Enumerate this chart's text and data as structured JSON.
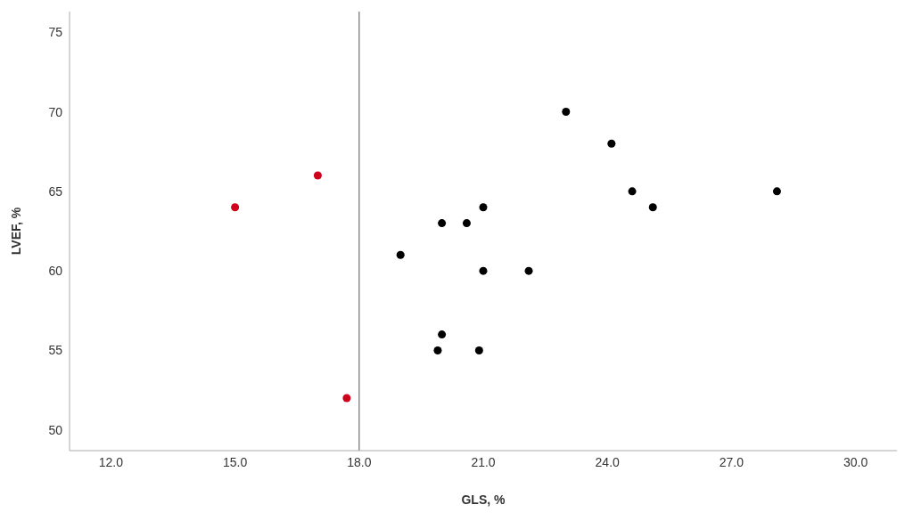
{
  "chart_data": {
    "type": "scatter",
    "xlabel": "GLS, %",
    "ylabel": "LVEF, %",
    "xlim": [
      11,
      31
    ],
    "ylim": [
      48.7,
      76.3
    ],
    "xticks": [
      {
        "value": 12,
        "label": "12.0"
      },
      {
        "value": 15,
        "label": "15.0"
      },
      {
        "value": 18,
        "label": "18.0"
      },
      {
        "value": 21,
        "label": "21.0"
      },
      {
        "value": 24,
        "label": "24.0"
      },
      {
        "value": 27,
        "label": "27.0"
      },
      {
        "value": 30,
        "label": "30.0"
      }
    ],
    "yticks": [
      50,
      55,
      60,
      65,
      70,
      75
    ],
    "grid": false,
    "marker": "circle",
    "ref_lines": [
      {
        "axis": "x",
        "value": 18,
        "color": "#8c8c8c"
      }
    ],
    "series": [
      {
        "color": "#000000",
        "x": [
          23.0,
          24.1,
          24.6,
          25.1,
          28.1,
          21.0,
          20.0,
          20.6,
          19.0,
          21.0,
          22.1,
          20.0,
          19.9,
          20.9
        ],
        "values": [
          70,
          68,
          65,
          64,
          65,
          64,
          63,
          63,
          61,
          60,
          60,
          56,
          55,
          55
        ]
      },
      {
        "color": "#d0021b",
        "x": [
          15.0,
          17.0,
          17.7
        ],
        "values": [
          64,
          66,
          52
        ]
      }
    ]
  }
}
